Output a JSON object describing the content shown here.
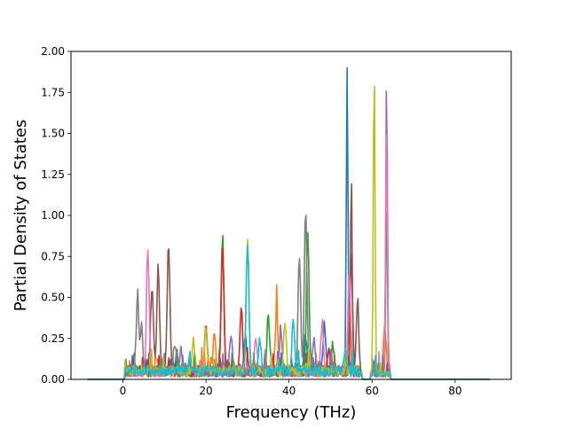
{
  "chart_data": {
    "type": "line",
    "title": "",
    "xlabel": "Frequency (THz)",
    "ylabel": "Partial Density of States",
    "xlim": [
      -12.5,
      93.5
    ],
    "ylim": [
      0,
      2.0
    ],
    "xticks": [
      0,
      20,
      40,
      60,
      80
    ],
    "yticks": [
      0.0,
      0.25,
      0.5,
      0.75,
      1.0,
      1.25,
      1.5,
      1.75,
      2.0
    ],
    "xtick_labels": [
      "0",
      "20",
      "40",
      "60",
      "80"
    ],
    "ytick_labels": [
      "0.00",
      "0.25",
      "0.50",
      "0.75",
      "1.00",
      "1.25",
      "1.50",
      "1.75",
      "2.00"
    ],
    "grid": false,
    "legend": "none",
    "x_range_of_data": [
      -8.5,
      88.5
    ],
    "colors": [
      "#1f77b4",
      "#ff7f0e",
      "#2ca02c",
      "#d62728",
      "#9467bd",
      "#8c564b",
      "#e377c2",
      "#7f7f7f",
      "#bcbd22",
      "#17becf"
    ],
    "series": [
      {
        "color": "#1f77b4",
        "peaks": [
          [
            54.0,
            1.85
          ],
          [
            48.5,
            0.28
          ],
          [
            29.5,
            0.2
          ],
          [
            44.0,
            0.22
          ],
          [
            12.0,
            0.08
          ]
        ]
      },
      {
        "color": "#ff7f0e",
        "peaks": [
          [
            37.0,
            0.39
          ],
          [
            22.0,
            0.22
          ],
          [
            54.5,
            0.4
          ],
          [
            63.0,
            0.3
          ],
          [
            8.0,
            0.1
          ]
        ]
      },
      {
        "color": "#2ca02c",
        "peaks": [
          [
            24.0,
            0.82
          ],
          [
            35.0,
            0.35
          ],
          [
            44.5,
            0.85
          ],
          [
            63.5,
            1.04
          ],
          [
            50.5,
            0.17
          ]
        ]
      },
      {
        "color": "#d62728",
        "peaks": [
          [
            24.0,
            0.78
          ],
          [
            28.5,
            0.38
          ],
          [
            20.0,
            0.27
          ],
          [
            49.5,
            0.14
          ],
          [
            55.0,
            0.7
          ]
        ]
      },
      {
        "color": "#9467bd",
        "peaks": [
          [
            63.5,
            1.79
          ],
          [
            26.0,
            0.24
          ],
          [
            46.0,
            0.2
          ],
          [
            14.0,
            0.12
          ],
          [
            38.0,
            0.25
          ]
        ]
      },
      {
        "color": "#8c564b",
        "peaks": [
          [
            11.0,
            0.79
          ],
          [
            8.5,
            0.64
          ],
          [
            7.0,
            0.51
          ],
          [
            55.0,
            1.21
          ],
          [
            56.5,
            0.39
          ]
        ]
      },
      {
        "color": "#e377c2",
        "peaks": [
          [
            6.0,
            0.75
          ],
          [
            48.0,
            0.29
          ],
          [
            63.5,
            1.52
          ],
          [
            54.5,
            0.6
          ],
          [
            32.0,
            0.22
          ]
        ]
      },
      {
        "color": "#7f7f7f",
        "peaks": [
          [
            3.5,
            0.42
          ],
          [
            42.5,
            0.7
          ],
          [
            44.0,
            0.98
          ],
          [
            12.5,
            0.19
          ],
          [
            4.5,
            0.28
          ]
        ]
      },
      {
        "color": "#bcbd22",
        "peaks": [
          [
            60.5,
            1.91
          ],
          [
            20.0,
            0.26
          ],
          [
            30.0,
            0.82
          ],
          [
            17.0,
            0.18
          ],
          [
            39.0,
            0.3
          ]
        ]
      },
      {
        "color": "#17becf",
        "peaks": [
          [
            30.0,
            0.8
          ],
          [
            41.0,
            0.3
          ],
          [
            53.5,
            0.13
          ],
          [
            33.0,
            0.2
          ],
          [
            16.0,
            0.1
          ]
        ]
      }
    ]
  }
}
